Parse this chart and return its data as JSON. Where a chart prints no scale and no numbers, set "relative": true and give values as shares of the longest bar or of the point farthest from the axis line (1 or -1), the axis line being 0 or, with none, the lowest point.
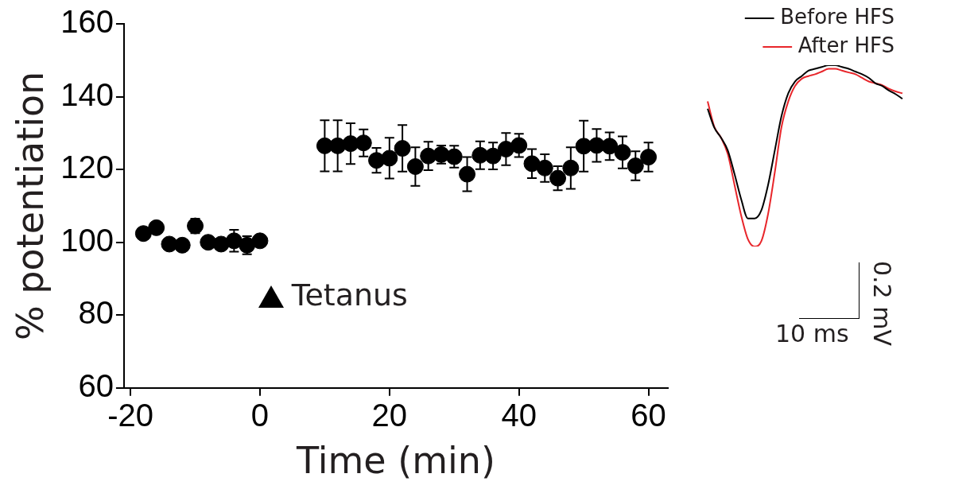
{
  "chart_data": [
    {
      "type": "scatter",
      "xlabel": "Time (min)",
      "ylabel": "% potentiation",
      "xlim": [
        -21,
        63
      ],
      "xticks": [
        -20,
        0,
        20,
        40,
        60
      ],
      "ylim": [
        60,
        160
      ],
      "yticks": [
        60,
        80,
        100,
        120,
        140,
        160
      ],
      "grid": false,
      "legend": false,
      "marker": "circle",
      "annotations": [
        "Tetanus"
      ],
      "series": [
        {
          "color": "#000000",
          "x": [
            -18,
            -16,
            -14,
            -12,
            -10,
            -8,
            -6,
            -4,
            -2,
            0,
            10,
            12,
            14,
            16,
            18,
            20,
            22,
            24,
            26,
            28,
            30,
            32,
            34,
            36,
            38,
            40,
            42,
            44,
            46,
            48,
            50,
            52,
            54,
            56,
            58,
            60
          ],
          "values": [
            102.4,
            104,
            99.5,
            99.2,
            104.5,
            100,
            99.5,
            100.4,
            99.2,
            100.4,
            126.5,
            126.5,
            127.1,
            127.3,
            122.5,
            123.1,
            125.8,
            120.8,
            123.7,
            124.1,
            123.5,
            118.7,
            123.9,
            123.7,
            125.6,
            126.6,
            121.6,
            120.4,
            117.6,
            120.4,
            126.4,
            126.6,
            126.4,
            124.7,
            121,
            123.4
          ],
          "errors": [
            null,
            null,
            null,
            null,
            2,
            null,
            null,
            3,
            2.5,
            null,
            7,
            7,
            5.6,
            3.7,
            3.4,
            5.6,
            6.4,
            5.3,
            3.9,
            2.5,
            3,
            4.7,
            3.8,
            3.7,
            4.4,
            3.2,
            4,
            3.8,
            3.3,
            5.7,
            7,
            4.5,
            3.8,
            4.4,
            4,
            4
          ]
        }
      ]
    },
    {
      "type": "line",
      "relative": true,
      "legend": "top right",
      "marker": "none",
      "annotations": [
        "0.2 mV",
        "10 ms"
      ],
      "categories": [
        null,
        null,
        null,
        null,
        null,
        null,
        null,
        null,
        null,
        null,
        null,
        null,
        null,
        null,
        null,
        null,
        null,
        null,
        null,
        null,
        null,
        null,
        null,
        null,
        null,
        null,
        null,
        null,
        null,
        null
      ],
      "series": [
        {
          "name": "Before HFS",
          "color": "#000000",
          "values": [
            0.76,
            0.655,
            0.6,
            0.53,
            0.4,
            0.26,
            0.155,
            0.155,
            0.2,
            0.34,
            0.53,
            0.72,
            0.845,
            0.91,
            0.94,
            0.97,
            0.98,
            0.99,
            1,
            1,
            0.99,
            0.98,
            0.965,
            0.95,
            0.93,
            0.9,
            0.885,
            0.86,
            0.84,
            0.815
          ]
        },
        {
          "name": "After HFS",
          "color": "#e8262b",
          "values": [
            0.8,
            0.66,
            0.6,
            0.51,
            0.34,
            0.17,
            0.04,
            0,
            0.03,
            0.18,
            0.41,
            0.66,
            0.8,
            0.885,
            0.925,
            0.94,
            0.95,
            0.965,
            0.98,
            0.98,
            0.97,
            0.96,
            0.95,
            0.93,
            0.91,
            0.9,
            0.89,
            0.87,
            0.855,
            0.845
          ]
        }
      ]
    }
  ]
}
